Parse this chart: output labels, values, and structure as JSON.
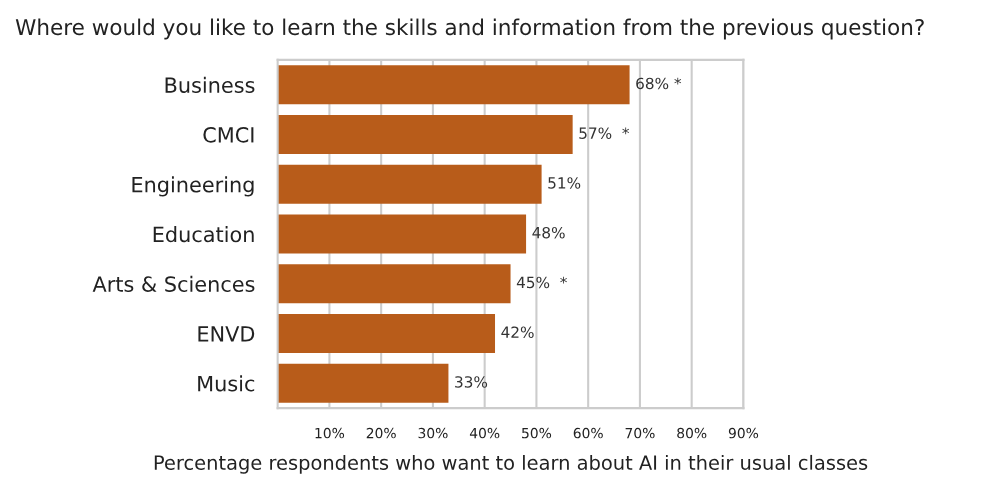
{
  "chart_data": {
    "type": "bar",
    "orientation": "horizontal",
    "title": "Where would you like to learn the skills and information from the previous question?",
    "xlabel": "Percentage respondents who want to learn about AI in their usual classes",
    "categories": [
      "Business",
      "CMCI",
      "Engineering",
      "Education",
      "Arts & Sciences",
      "ENVD",
      "Music"
    ],
    "values": [
      68,
      57,
      51,
      48,
      45,
      42,
      33
    ],
    "value_labels": [
      "68% *",
      "57%  *",
      "51%",
      "48%",
      "45%  *",
      "42%",
      "33%"
    ],
    "color": "#b85c1a",
    "xlim": [
      0,
      90
    ],
    "xticks": [
      {
        "value": 10,
        "label": "10%"
      },
      {
        "value": 20,
        "label": "20%"
      },
      {
        "value": 30,
        "label": "30%"
      },
      {
        "value": 40,
        "label": "40%"
      },
      {
        "value": 50,
        "label": "50%"
      },
      {
        "value": 60,
        "label": "60%"
      },
      {
        "value": 70,
        "label": "70%"
      },
      {
        "value": 80,
        "label": "80%"
      },
      {
        "value": 90,
        "label": "90%"
      }
    ],
    "grid": "x"
  }
}
